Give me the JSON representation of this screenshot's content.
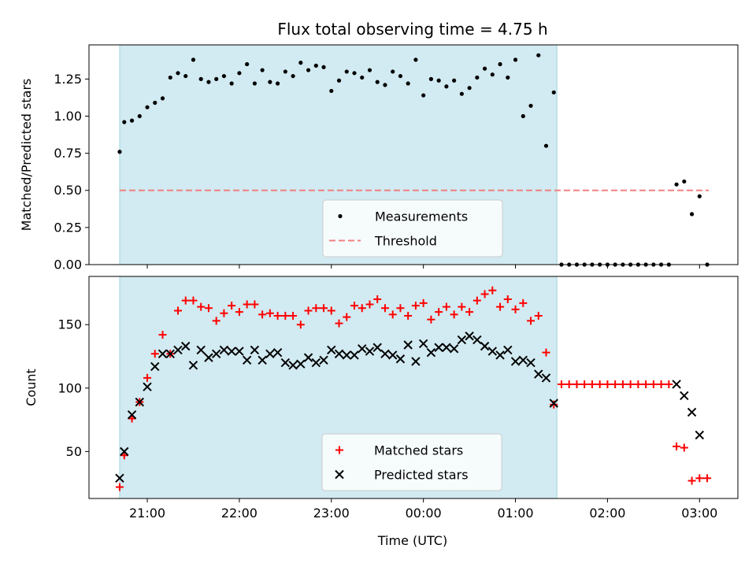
{
  "chart_data": [
    {
      "type": "scatter",
      "panel": "top",
      "title": "Flux total observing time = 4.75 h",
      "xlabel": "",
      "ylabel": "Matched/Predicted stars",
      "ylim": [
        0,
        1.48
      ],
      "yticks": [
        "0.00",
        "0.25",
        "0.50",
        "0.75",
        "1.00",
        "1.25"
      ],
      "xticks": [
        "21:00",
        "22:00",
        "23:00",
        "00:00",
        "01:00",
        "02:00",
        "03:00"
      ],
      "legend_position": "lower-center",
      "observing_window": {
        "start": "20:42",
        "end": "01:27",
        "color": "#add8e6"
      },
      "threshold": {
        "name": "Threshold",
        "value": 0.5,
        "color": "#f08080",
        "style": "dashed",
        "x_range": [
          "20:42",
          "03:06"
        ]
      },
      "series": [
        {
          "name": "Measurements",
          "color": "#000000",
          "marker": "dot",
          "x": [
            "20:42",
            "20:45",
            "20:50",
            "20:55",
            "21:00",
            "21:05",
            "21:10",
            "21:15",
            "21:20",
            "21:25",
            "21:30",
            "21:35",
            "21:40",
            "21:45",
            "21:50",
            "21:55",
            "22:00",
            "22:05",
            "22:10",
            "22:15",
            "22:20",
            "22:25",
            "22:30",
            "22:35",
            "22:40",
            "22:45",
            "22:50",
            "22:55",
            "23:00",
            "23:05",
            "23:10",
            "23:15",
            "23:20",
            "23:25",
            "23:30",
            "23:35",
            "23:40",
            "23:45",
            "23:50",
            "23:55",
            "00:00",
            "00:05",
            "00:10",
            "00:15",
            "00:20",
            "00:25",
            "00:30",
            "00:35",
            "00:40",
            "00:45",
            "00:50",
            "00:55",
            "01:00",
            "01:05",
            "01:10",
            "01:15",
            "01:20",
            "01:25",
            "01:30",
            "01:35",
            "01:40",
            "01:45",
            "01:50",
            "01:55",
            "02:00",
            "02:05",
            "02:10",
            "02:15",
            "02:20",
            "02:25",
            "02:30",
            "02:35",
            "02:40",
            "02:45",
            "02:50",
            "02:55",
            "03:00",
            "03:05"
          ],
          "y": [
            0.76,
            0.96,
            0.97,
            1.0,
            1.06,
            1.09,
            1.12,
            1.26,
            1.29,
            1.27,
            1.38,
            1.25,
            1.23,
            1.25,
            1.27,
            1.22,
            1.29,
            1.35,
            1.22,
            1.31,
            1.23,
            1.22,
            1.3,
            1.27,
            1.36,
            1.31,
            1.34,
            1.33,
            1.17,
            1.24,
            1.3,
            1.29,
            1.26,
            1.31,
            1.23,
            1.21,
            1.3,
            1.27,
            1.22,
            1.38,
            1.14,
            1.25,
            1.24,
            1.2,
            1.24,
            1.15,
            1.19,
            1.26,
            1.32,
            1.28,
            1.35,
            1.26,
            1.38,
            1.0,
            1.07,
            1.41,
            0.8,
            1.16,
            0.0,
            0.0,
            0.0,
            0.0,
            0.0,
            0.0,
            0.0,
            0.0,
            0.0,
            0.0,
            0.0,
            0.0,
            0.0,
            0.0,
            0.0,
            0.54,
            0.56,
            0.34,
            0.46,
            0.0
          ]
        }
      ]
    },
    {
      "type": "scatter",
      "panel": "bottom",
      "xlabel": "Time (UTC)",
      "ylabel": "Count",
      "ylim": [
        13,
        188
      ],
      "yticks": [
        "50",
        "100",
        "150"
      ],
      "xticks": [
        "21:00",
        "22:00",
        "23:00",
        "00:00",
        "01:00",
        "02:00",
        "03:00"
      ],
      "legend_position": "lower-center",
      "observing_window": {
        "start": "20:42",
        "end": "01:27",
        "color": "#add8e6"
      },
      "series": [
        {
          "name": "Matched stars",
          "color": "#ff0000",
          "marker": "plus",
          "x": [
            "20:42",
            "20:45",
            "20:50",
            "20:55",
            "21:00",
            "21:05",
            "21:10",
            "21:15",
            "21:20",
            "21:25",
            "21:30",
            "21:35",
            "21:40",
            "21:45",
            "21:50",
            "21:55",
            "22:00",
            "22:05",
            "22:10",
            "22:15",
            "22:20",
            "22:25",
            "22:30",
            "22:35",
            "22:40",
            "22:45",
            "22:50",
            "22:55",
            "23:00",
            "23:05",
            "23:10",
            "23:15",
            "23:20",
            "23:25",
            "23:30",
            "23:35",
            "23:40",
            "23:45",
            "23:50",
            "23:55",
            "00:00",
            "00:05",
            "00:10",
            "00:15",
            "00:20",
            "00:25",
            "00:30",
            "00:35",
            "00:40",
            "00:45",
            "00:50",
            "00:55",
            "01:00",
            "01:05",
            "01:10",
            "01:15",
            "01:20",
            "01:25",
            "01:30",
            "01:35",
            "01:40",
            "01:45",
            "01:50",
            "01:55",
            "02:00",
            "02:05",
            "02:10",
            "02:15",
            "02:20",
            "02:25",
            "02:30",
            "02:35",
            "02:40",
            "02:45",
            "02:50",
            "02:55",
            "03:00",
            "03:05"
          ],
          "y": [
            22,
            47,
            76,
            89,
            108,
            127,
            142,
            127,
            161,
            169,
            169,
            164,
            163,
            153,
            159,
            165,
            160,
            166,
            166,
            158,
            159,
            157,
            157,
            157,
            150,
            161,
            163,
            163,
            161,
            151,
            156,
            165,
            163,
            166,
            170,
            163,
            158,
            163,
            157,
            165,
            167,
            154,
            160,
            164,
            158,
            164,
            160,
            169,
            174,
            177,
            164,
            170,
            162,
            167,
            153,
            157,
            128,
            87,
            103,
            103,
            103,
            103,
            103,
            103,
            103,
            103,
            103,
            103,
            103,
            103,
            103,
            103,
            103,
            54,
            53,
            27,
            29,
            29
          ]
        },
        {
          "name": "Predicted stars",
          "color": "#000000",
          "marker": "cross",
          "x": [
            "20:42",
            "20:45",
            "20:50",
            "20:55",
            "21:00",
            "21:05",
            "21:10",
            "21:15",
            "21:20",
            "21:25",
            "21:30",
            "21:35",
            "21:40",
            "21:45",
            "21:50",
            "21:55",
            "22:00",
            "22:05",
            "22:10",
            "22:15",
            "22:20",
            "22:25",
            "22:30",
            "22:35",
            "22:40",
            "22:45",
            "22:50",
            "22:55",
            "23:00",
            "23:05",
            "23:10",
            "23:15",
            "23:20",
            "23:25",
            "23:30",
            "23:35",
            "23:40",
            "23:45",
            "23:50",
            "23:55",
            "00:00",
            "00:05",
            "00:10",
            "00:15",
            "00:20",
            "00:25",
            "00:30",
            "00:35",
            "00:40",
            "00:45",
            "00:50",
            "00:55",
            "01:00",
            "01:05",
            "01:10",
            "01:15",
            "01:20",
            "01:25",
            "01:30",
            "01:35",
            "01:40",
            "01:45",
            "01:50",
            "01:55",
            "02:00",
            "02:05",
            "02:10",
            "02:15",
            "02:20",
            "02:25",
            "02:30",
            "02:35",
            "02:40",
            "02:45",
            "02:50",
            "02:55",
            "03:00",
            "03:05"
          ],
          "y": [
            29,
            50,
            79,
            89,
            101,
            117,
            127,
            127,
            130,
            133,
            118,
            130,
            124,
            127,
            130,
            129,
            129,
            122,
            130,
            122,
            127,
            128,
            120,
            118,
            119,
            124,
            120,
            122,
            130,
            127,
            126,
            126,
            131,
            129,
            132,
            127,
            126,
            123,
            134,
            121,
            135,
            128,
            132,
            132,
            131,
            138,
            141,
            138,
            133,
            129,
            126,
            130,
            121,
            122,
            120,
            111,
            108,
            88,
            null,
            null,
            null,
            null,
            null,
            null,
            null,
            null,
            null,
            null,
            null,
            null,
            null,
            null,
            null,
            103,
            94,
            81,
            63,
            null
          ]
        }
      ]
    }
  ]
}
